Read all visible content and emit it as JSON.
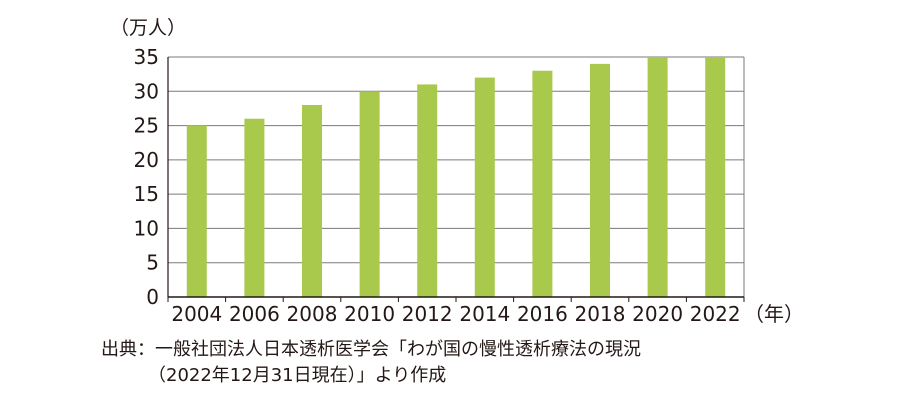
{
  "chart_data": {
    "type": "bar",
    "title": "",
    "ylabel": "（万人）",
    "xlabel": "（年）",
    "categories": [
      "2004",
      "2006",
      "2008",
      "2010",
      "2012",
      "2014",
      "2016",
      "2018",
      "2020",
      "2022"
    ],
    "values": [
      25,
      26,
      28,
      30,
      31,
      32,
      33,
      34,
      35,
      35
    ],
    "ylim": [
      0,
      35
    ],
    "yticks": [
      0,
      5,
      10,
      15,
      20,
      25,
      30,
      35
    ],
    "grid": true,
    "legend": "none",
    "bar_color": "#a8c94c",
    "grid_color": "#7a7a7a"
  },
  "source": {
    "line1": "出典：一般社団法人日本透析医学会「わが国の慢性透析療法の現況",
    "line2": "（2022年12月31日現在）」より作成"
  }
}
